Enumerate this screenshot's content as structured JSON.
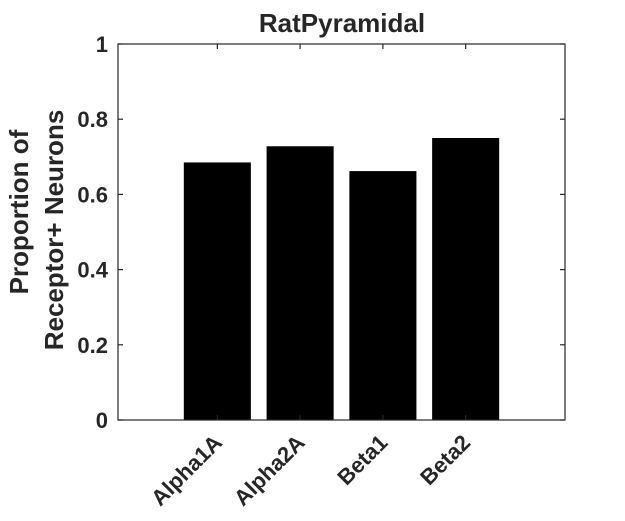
{
  "chart_data": {
    "type": "bar",
    "title": "RatPyramidal",
    "categories": [
      "Alpha1A",
      "Alpha2A",
      "Beta1",
      "Beta2"
    ],
    "values": [
      0.685,
      0.728,
      0.662,
      0.75
    ],
    "xlabel": "",
    "ylabel_lines": [
      "Proportion of",
      "Receptor+ Neurons"
    ],
    "ylim": [
      0,
      1
    ],
    "yticks": [
      {
        "value": 0,
        "label": "0"
      },
      {
        "value": 0.2,
        "label": "0.2"
      },
      {
        "value": 0.4,
        "label": "0.4"
      },
      {
        "value": 0.6,
        "label": "0.6"
      },
      {
        "value": 0.8,
        "label": "0.8"
      },
      {
        "value": 1,
        "label": "1"
      }
    ],
    "bar_color": "#000000",
    "grid": false
  }
}
